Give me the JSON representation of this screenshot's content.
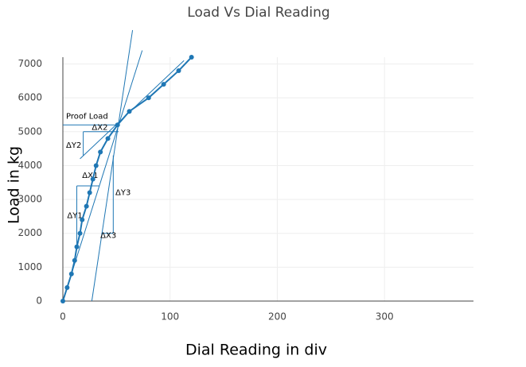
{
  "chart_data": {
    "type": "line",
    "title": "Load Vs Dial Reading",
    "x_label": "Dial Reading in div",
    "y_label": "Load in kg",
    "x": [
      0,
      4,
      8,
      11,
      13,
      16,
      18,
      22,
      25,
      28,
      31,
      35,
      42,
      51,
      62,
      80,
      94,
      108,
      120
    ],
    "series": [
      {
        "name": "Load",
        "color": "#1f77b4",
        "values": [
          0,
          400,
          800,
          1200,
          1600,
          2000,
          2400,
          2800,
          3200,
          3600,
          4000,
          4400,
          4800,
          5200,
          5600,
          6000,
          6400,
          6800,
          7200
        ]
      }
    ],
    "xlim": [
      0,
      383
    ],
    "ylim": [
      0,
      7200
    ],
    "xticks": [
      0,
      100,
      200,
      300
    ],
    "yticks": [
      0,
      1000,
      2000,
      3000,
      4000,
      5000,
      6000,
      7000
    ],
    "grid": true,
    "shapes": [
      {
        "x": [
          27,
          65
        ],
        "y": [
          0,
          8000
        ]
      },
      {
        "x": [
          0,
          74
        ],
        "y": [
          0,
          7400
        ]
      },
      {
        "x": [
          16,
          113
        ],
        "y": [
          4200,
          7100
        ]
      },
      {
        "x": [
          0,
          52
        ],
        "y": [
          5200,
          5200
        ]
      },
      {
        "x": [
          19,
          52
        ],
        "y": [
          5000,
          5000
        ]
      },
      {
        "x": [
          19,
          19
        ],
        "y": [
          5000,
          4300
        ]
      },
      {
        "x": [
          13,
          34
        ],
        "y": [
          3400,
          3400
        ]
      },
      {
        "x": [
          13,
          13
        ],
        "y": [
          3400,
          1600
        ]
      },
      {
        "x": [
          36,
          47
        ],
        "y": [
          2000,
          2000
        ]
      },
      {
        "x": [
          47,
          47
        ],
        "y": [
          2000,
          4300
        ]
      }
    ],
    "annotations": [
      {
        "text": "Proof Load",
        "x": 3,
        "y": 5450
      },
      {
        "text": "ΔX2",
        "x": 27,
        "y": 5130
      },
      {
        "text": "ΔY2",
        "x": 3,
        "y": 4600
      },
      {
        "text": "ΔX1",
        "x": 18,
        "y": 3700
      },
      {
        "text": "ΔY1",
        "x": 4,
        "y": 2520
      },
      {
        "text": "ΔY3",
        "x": 49,
        "y": 3200
      },
      {
        "text": "ΔX3",
        "x": 35,
        "y": 1930
      }
    ]
  }
}
